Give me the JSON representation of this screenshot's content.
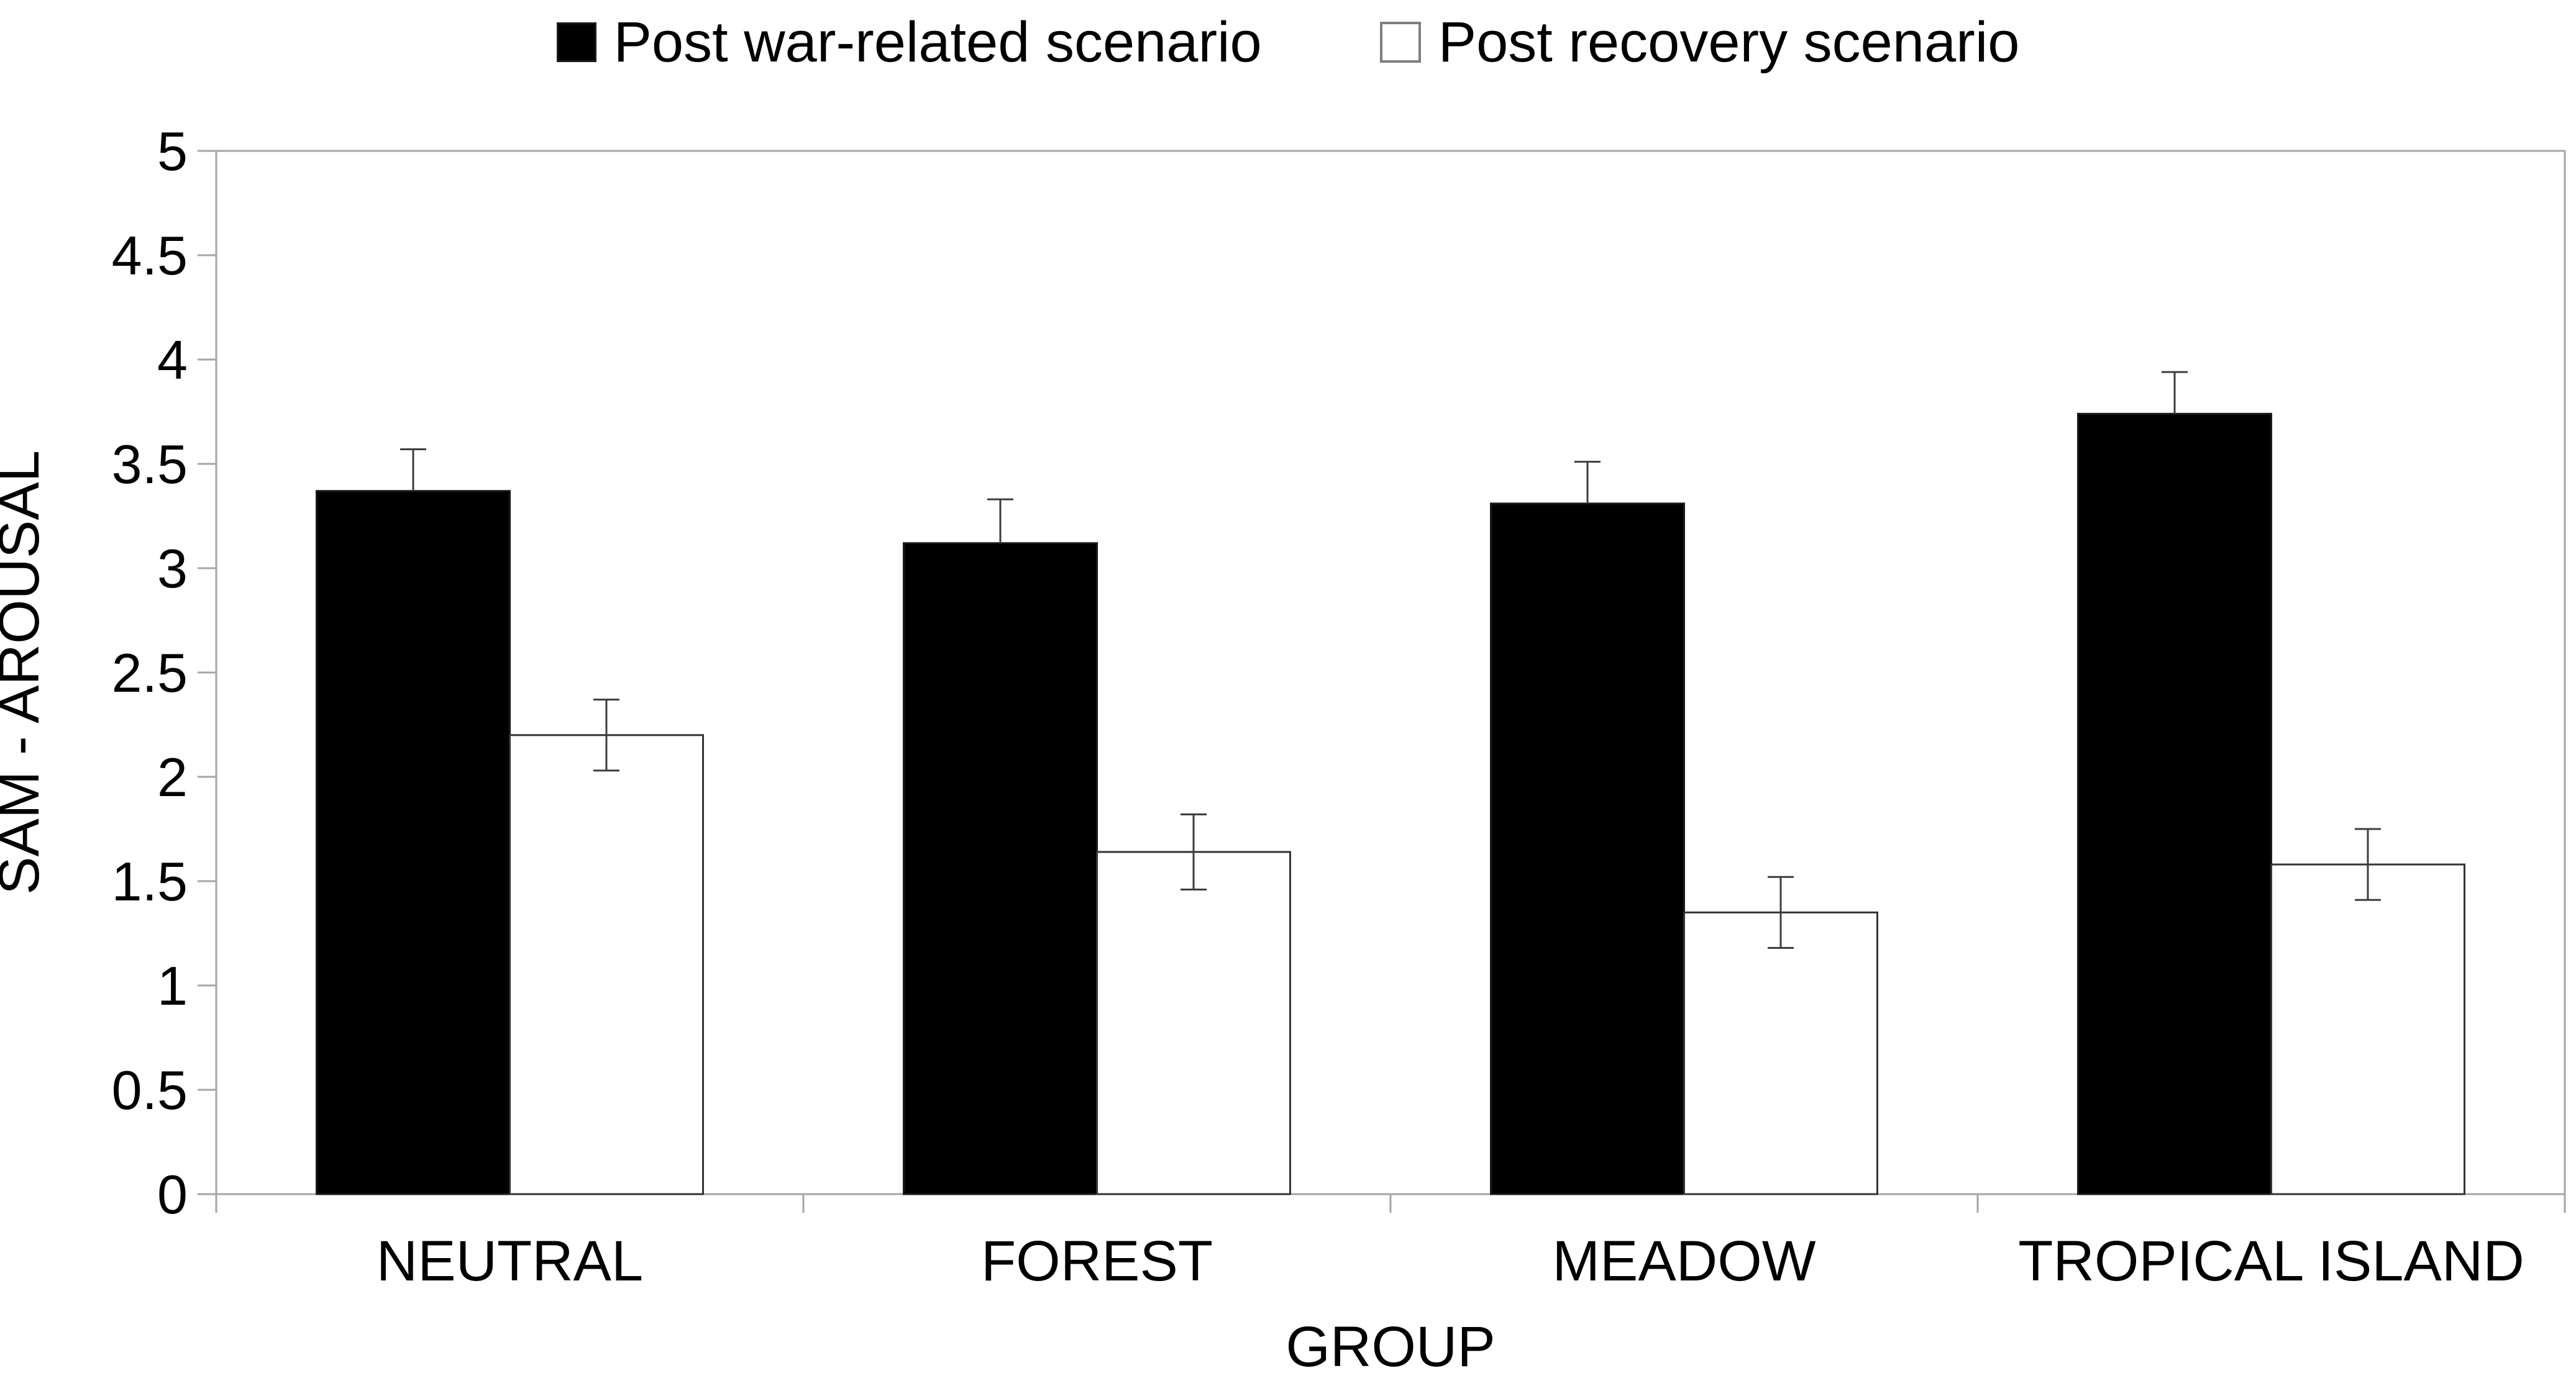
{
  "chart_data": {
    "type": "bar",
    "title": "",
    "categories": [
      "NEUTRAL",
      "FOREST",
      "MEADOW",
      "TROPICAL ISLAND"
    ],
    "series": [
      {
        "name": "Post war-related scenario",
        "fill": "#000000",
        "stroke": "#1a1a1a",
        "values": [
          3.37,
          3.12,
          3.31,
          3.74
        ],
        "errors": [
          0.2,
          0.21,
          0.2,
          0.2
        ],
        "error_style": "upper"
      },
      {
        "name": "Post recovery scenario",
        "fill": "#ffffff",
        "stroke": "#333333",
        "values": [
          2.2,
          1.64,
          1.35,
          1.58
        ],
        "errors": [
          0.17,
          0.18,
          0.17,
          0.17
        ],
        "error_style": "both"
      }
    ],
    "xlabel": "GROUP",
    "ylabel": "SAM - AROUSAL",
    "ylim": [
      0,
      5
    ],
    "ytick_step": 0.5,
    "ytick_labels": [
      "0",
      "0.5",
      "1",
      "1.5",
      "2",
      "2.5",
      "3",
      "3.5",
      "4",
      "4.5",
      "5"
    ],
    "grid": false,
    "legend_position": "top"
  },
  "colors": {
    "background": "#ffffff",
    "axis": "#a6a6a6",
    "error_bar": "#3d3d3d",
    "text": "#000000"
  }
}
